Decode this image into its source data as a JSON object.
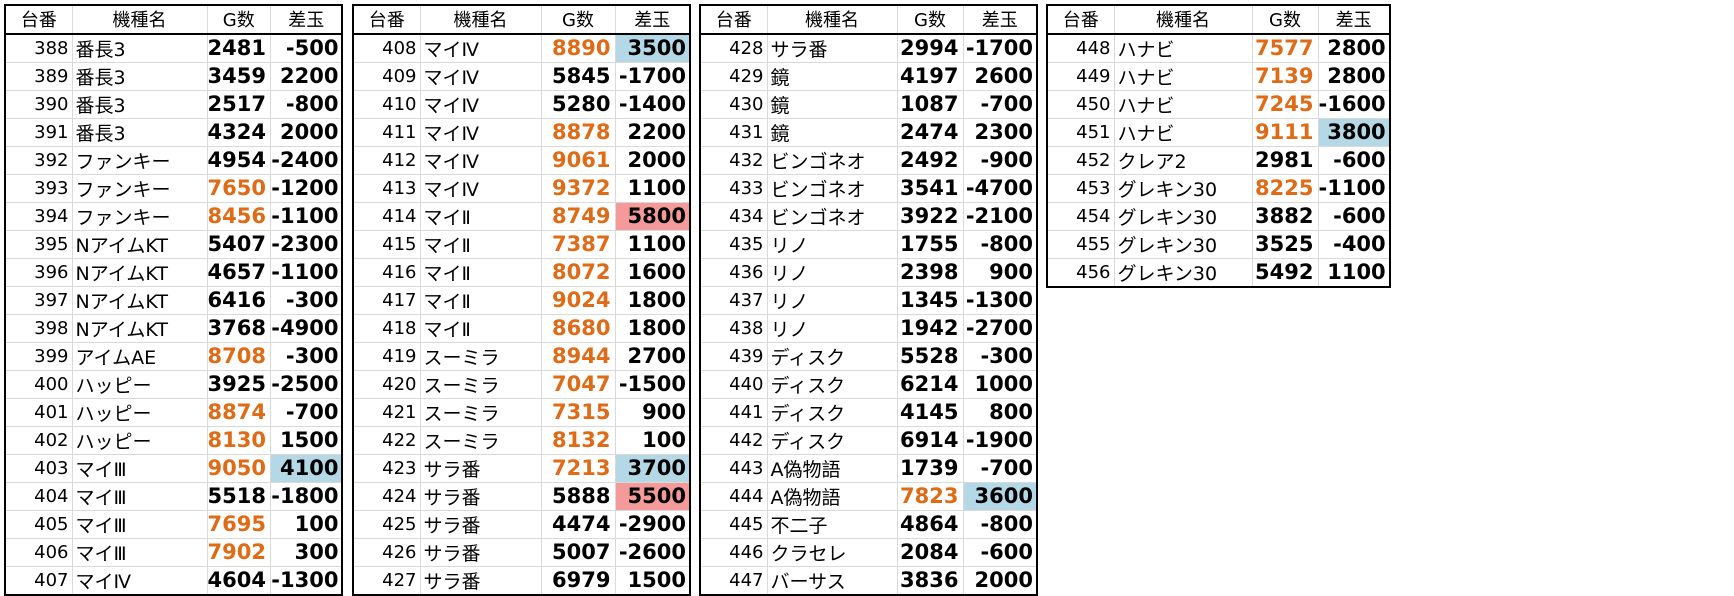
{
  "headers": {
    "num": "台番",
    "name": "機種名",
    "g": "G数",
    "diff": "差玉"
  },
  "colors": {
    "high_games": "#e06b17",
    "blue_highlight": "#b4d8e6",
    "red_highlight": "#f59a9a"
  },
  "tables": [
    {
      "rows": [
        {
          "num": "388",
          "name": "番長3",
          "g": "2481",
          "diff": "-500",
          "g_high": false,
          "hl": ""
        },
        {
          "num": "389",
          "name": "番長3",
          "g": "3459",
          "diff": "2200",
          "g_high": false,
          "hl": ""
        },
        {
          "num": "390",
          "name": "番長3",
          "g": "2517",
          "diff": "-800",
          "g_high": false,
          "hl": ""
        },
        {
          "num": "391",
          "name": "番長3",
          "g": "4324",
          "diff": "2000",
          "g_high": false,
          "hl": ""
        },
        {
          "num": "392",
          "name": "ファンキー",
          "g": "4954",
          "diff": "-2400",
          "g_high": false,
          "hl": ""
        },
        {
          "num": "393",
          "name": "ファンキー",
          "g": "7650",
          "diff": "-1200",
          "g_high": true,
          "hl": ""
        },
        {
          "num": "394",
          "name": "ファンキー",
          "g": "8456",
          "diff": "-1100",
          "g_high": true,
          "hl": ""
        },
        {
          "num": "395",
          "name": "NアイムKT",
          "g": "5407",
          "diff": "-2300",
          "g_high": false,
          "hl": ""
        },
        {
          "num": "396",
          "name": "NアイムKT",
          "g": "4657",
          "diff": "-1100",
          "g_high": false,
          "hl": ""
        },
        {
          "num": "397",
          "name": "NアイムKT",
          "g": "6416",
          "diff": "-300",
          "g_high": false,
          "hl": ""
        },
        {
          "num": "398",
          "name": "NアイムKT",
          "g": "3768",
          "diff": "-4900",
          "g_high": false,
          "hl": ""
        },
        {
          "num": "399",
          "name": "アイムAE",
          "g": "8708",
          "diff": "-300",
          "g_high": true,
          "hl": ""
        },
        {
          "num": "400",
          "name": "ハッピー",
          "g": "3925",
          "diff": "-2500",
          "g_high": false,
          "hl": ""
        },
        {
          "num": "401",
          "name": "ハッピー",
          "g": "8874",
          "diff": "-700",
          "g_high": true,
          "hl": ""
        },
        {
          "num": "402",
          "name": "ハッピー",
          "g": "8130",
          "diff": "1500",
          "g_high": true,
          "hl": ""
        },
        {
          "num": "403",
          "name": "マイⅢ",
          "g": "9050",
          "diff": "4100",
          "g_high": true,
          "hl": "blue"
        },
        {
          "num": "404",
          "name": "マイⅢ",
          "g": "5518",
          "diff": "-1800",
          "g_high": false,
          "hl": ""
        },
        {
          "num": "405",
          "name": "マイⅢ",
          "g": "7695",
          "diff": "100",
          "g_high": true,
          "hl": ""
        },
        {
          "num": "406",
          "name": "マイⅢ",
          "g": "7902",
          "diff": "300",
          "g_high": true,
          "hl": ""
        },
        {
          "num": "407",
          "name": "マイⅣ",
          "g": "4604",
          "diff": "-1300",
          "g_high": false,
          "hl": ""
        }
      ]
    },
    {
      "rows": [
        {
          "num": "408",
          "name": "マイⅣ",
          "g": "8890",
          "diff": "3500",
          "g_high": true,
          "hl": "blue"
        },
        {
          "num": "409",
          "name": "マイⅣ",
          "g": "5845",
          "diff": "-1700",
          "g_high": false,
          "hl": ""
        },
        {
          "num": "410",
          "name": "マイⅣ",
          "g": "5280",
          "diff": "-1400",
          "g_high": false,
          "hl": ""
        },
        {
          "num": "411",
          "name": "マイⅣ",
          "g": "8878",
          "diff": "2200",
          "g_high": true,
          "hl": ""
        },
        {
          "num": "412",
          "name": "マイⅣ",
          "g": "9061",
          "diff": "2000",
          "g_high": true,
          "hl": ""
        },
        {
          "num": "413",
          "name": "マイⅣ",
          "g": "9372",
          "diff": "1100",
          "g_high": true,
          "hl": ""
        },
        {
          "num": "414",
          "name": "マイⅡ",
          "g": "8749",
          "diff": "5800",
          "g_high": true,
          "hl": "red"
        },
        {
          "num": "415",
          "name": "マイⅡ",
          "g": "7387",
          "diff": "1100",
          "g_high": true,
          "hl": ""
        },
        {
          "num": "416",
          "name": "マイⅡ",
          "g": "8072",
          "diff": "1600",
          "g_high": true,
          "hl": ""
        },
        {
          "num": "417",
          "name": "マイⅡ",
          "g": "9024",
          "diff": "1800",
          "g_high": true,
          "hl": ""
        },
        {
          "num": "418",
          "name": "マイⅡ",
          "g": "8680",
          "diff": "1800",
          "g_high": true,
          "hl": ""
        },
        {
          "num": "419",
          "name": "スーミラ",
          "g": "8944",
          "diff": "2700",
          "g_high": true,
          "hl": ""
        },
        {
          "num": "420",
          "name": "スーミラ",
          "g": "7047",
          "diff": "-1500",
          "g_high": true,
          "hl": ""
        },
        {
          "num": "421",
          "name": "スーミラ",
          "g": "7315",
          "diff": "900",
          "g_high": true,
          "hl": ""
        },
        {
          "num": "422",
          "name": "スーミラ",
          "g": "8132",
          "diff": "100",
          "g_high": true,
          "hl": ""
        },
        {
          "num": "423",
          "name": "サラ番",
          "g": "7213",
          "diff": "3700",
          "g_high": true,
          "hl": "blue"
        },
        {
          "num": "424",
          "name": "サラ番",
          "g": "5888",
          "diff": "5500",
          "g_high": false,
          "hl": "red"
        },
        {
          "num": "425",
          "name": "サラ番",
          "g": "4474",
          "diff": "-2900",
          "g_high": false,
          "hl": ""
        },
        {
          "num": "426",
          "name": "サラ番",
          "g": "5007",
          "diff": "-2600",
          "g_high": false,
          "hl": ""
        },
        {
          "num": "427",
          "name": "サラ番",
          "g": "6979",
          "diff": "1500",
          "g_high": false,
          "hl": ""
        }
      ]
    },
    {
      "rows": [
        {
          "num": "428",
          "name": "サラ番",
          "g": "2994",
          "diff": "-1700",
          "g_high": false,
          "hl": ""
        },
        {
          "num": "429",
          "name": "鏡",
          "g": "4197",
          "diff": "2600",
          "g_high": false,
          "hl": ""
        },
        {
          "num": "430",
          "name": "鏡",
          "g": "1087",
          "diff": "-700",
          "g_high": false,
          "hl": ""
        },
        {
          "num": "431",
          "name": "鏡",
          "g": "2474",
          "diff": "2300",
          "g_high": false,
          "hl": ""
        },
        {
          "num": "432",
          "name": "ビンゴネオ",
          "g": "2492",
          "diff": "-900",
          "g_high": false,
          "hl": ""
        },
        {
          "num": "433",
          "name": "ビンゴネオ",
          "g": "3541",
          "diff": "-4700",
          "g_high": false,
          "hl": ""
        },
        {
          "num": "434",
          "name": "ビンゴネオ",
          "g": "3922",
          "diff": "-2100",
          "g_high": false,
          "hl": ""
        },
        {
          "num": "435",
          "name": "リノ",
          "g": "1755",
          "diff": "-800",
          "g_high": false,
          "hl": ""
        },
        {
          "num": "436",
          "name": "リノ",
          "g": "2398",
          "diff": "900",
          "g_high": false,
          "hl": ""
        },
        {
          "num": "437",
          "name": "リノ",
          "g": "1345",
          "diff": "-1300",
          "g_high": false,
          "hl": ""
        },
        {
          "num": "438",
          "name": "リノ",
          "g": "1942",
          "diff": "-2700",
          "g_high": false,
          "hl": ""
        },
        {
          "num": "439",
          "name": "ディスク",
          "g": "5528",
          "diff": "-300",
          "g_high": false,
          "hl": ""
        },
        {
          "num": "440",
          "name": "ディスク",
          "g": "6214",
          "diff": "1000",
          "g_high": false,
          "hl": ""
        },
        {
          "num": "441",
          "name": "ディスク",
          "g": "4145",
          "diff": "800",
          "g_high": false,
          "hl": ""
        },
        {
          "num": "442",
          "name": "ディスク",
          "g": "6914",
          "diff": "-1900",
          "g_high": false,
          "hl": ""
        },
        {
          "num": "443",
          "name": "A偽物語",
          "g": "1739",
          "diff": "-700",
          "g_high": false,
          "hl": ""
        },
        {
          "num": "444",
          "name": "A偽物語",
          "g": "7823",
          "diff": "3600",
          "g_high": true,
          "hl": "blue"
        },
        {
          "num": "445",
          "name": "不二子",
          "g": "4864",
          "diff": "-800",
          "g_high": false,
          "hl": ""
        },
        {
          "num": "446",
          "name": "クラセレ",
          "g": "2084",
          "diff": "-600",
          "g_high": false,
          "hl": ""
        },
        {
          "num": "447",
          "name": "バーサス",
          "g": "3836",
          "diff": "2000",
          "g_high": false,
          "hl": ""
        }
      ]
    },
    {
      "rows": [
        {
          "num": "448",
          "name": "ハナビ",
          "g": "7577",
          "diff": "2800",
          "g_high": true,
          "hl": ""
        },
        {
          "num": "449",
          "name": "ハナビ",
          "g": "7139",
          "diff": "2800",
          "g_high": true,
          "hl": ""
        },
        {
          "num": "450",
          "name": "ハナビ",
          "g": "7245",
          "diff": "-1600",
          "g_high": true,
          "hl": ""
        },
        {
          "num": "451",
          "name": "ハナビ",
          "g": "9111",
          "diff": "3800",
          "g_high": true,
          "hl": "blue"
        },
        {
          "num": "452",
          "name": "クレア2",
          "g": "2981",
          "diff": "-600",
          "g_high": false,
          "hl": ""
        },
        {
          "num": "453",
          "name": "グレキン30",
          "g": "8225",
          "diff": "-1100",
          "g_high": true,
          "hl": ""
        },
        {
          "num": "454",
          "name": "グレキン30",
          "g": "3882",
          "diff": "-600",
          "g_high": false,
          "hl": ""
        },
        {
          "num": "455",
          "name": "グレキン30",
          "g": "3525",
          "diff": "-400",
          "g_high": false,
          "hl": ""
        },
        {
          "num": "456",
          "name": "グレキン30",
          "g": "5492",
          "diff": "1100",
          "g_high": false,
          "hl": ""
        }
      ]
    }
  ]
}
